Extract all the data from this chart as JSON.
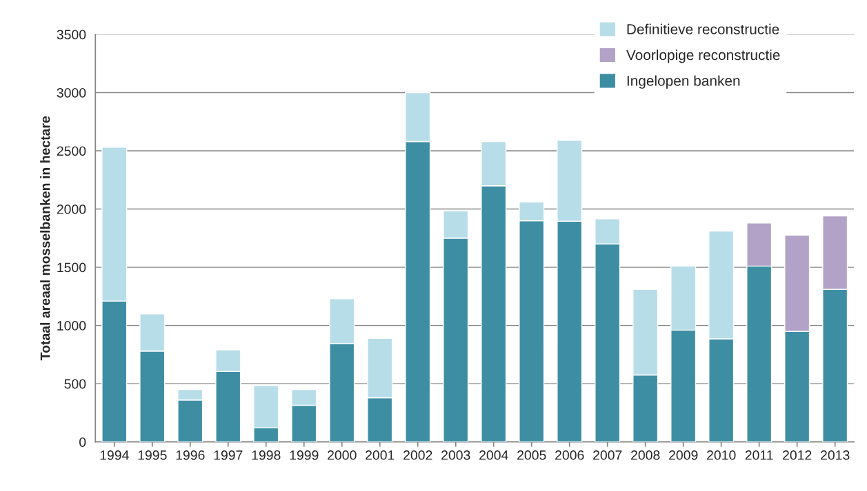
{
  "chart_data": {
    "type": "bar",
    "stacked": true,
    "ylabel": "Totaal areaal mosselbanken in hectare",
    "categories": [
      "1994",
      "1995",
      "1996",
      "1997",
      "1998",
      "1999",
      "2000",
      "2001",
      "2002",
      "2003",
      "2004",
      "2005",
      "2006",
      "2007",
      "2008",
      "2009",
      "2010",
      "2011",
      "2012",
      "2013"
    ],
    "series": [
      {
        "name": "Ingelopen banken",
        "color": "#3e8ea3",
        "values": [
          1210,
          780,
          360,
          605,
          120,
          315,
          845,
          380,
          2580,
          1750,
          2200,
          1900,
          1895,
          1700,
          575,
          960,
          885,
          1510,
          950,
          1310
        ]
      },
      {
        "name": "Voorlopige reconstructie",
        "color": "#b3a2c7",
        "values": [
          null,
          null,
          null,
          null,
          null,
          null,
          null,
          null,
          null,
          null,
          null,
          null,
          null,
          null,
          null,
          null,
          null,
          370,
          825,
          630
        ]
      },
      {
        "name": "Definitieve reconstructie",
        "color": "#b7dde8",
        "values": [
          1320,
          320,
          90,
          185,
          365,
          135,
          385,
          510,
          420,
          235,
          380,
          160,
          695,
          215,
          735,
          550,
          925,
          null,
          null,
          null
        ]
      }
    ],
    "ylim": [
      0,
      3500
    ],
    "yticks": [
      0,
      500,
      1000,
      1500,
      2000,
      2500,
      3000,
      3500
    ],
    "grid": "y",
    "legend": "top right"
  }
}
